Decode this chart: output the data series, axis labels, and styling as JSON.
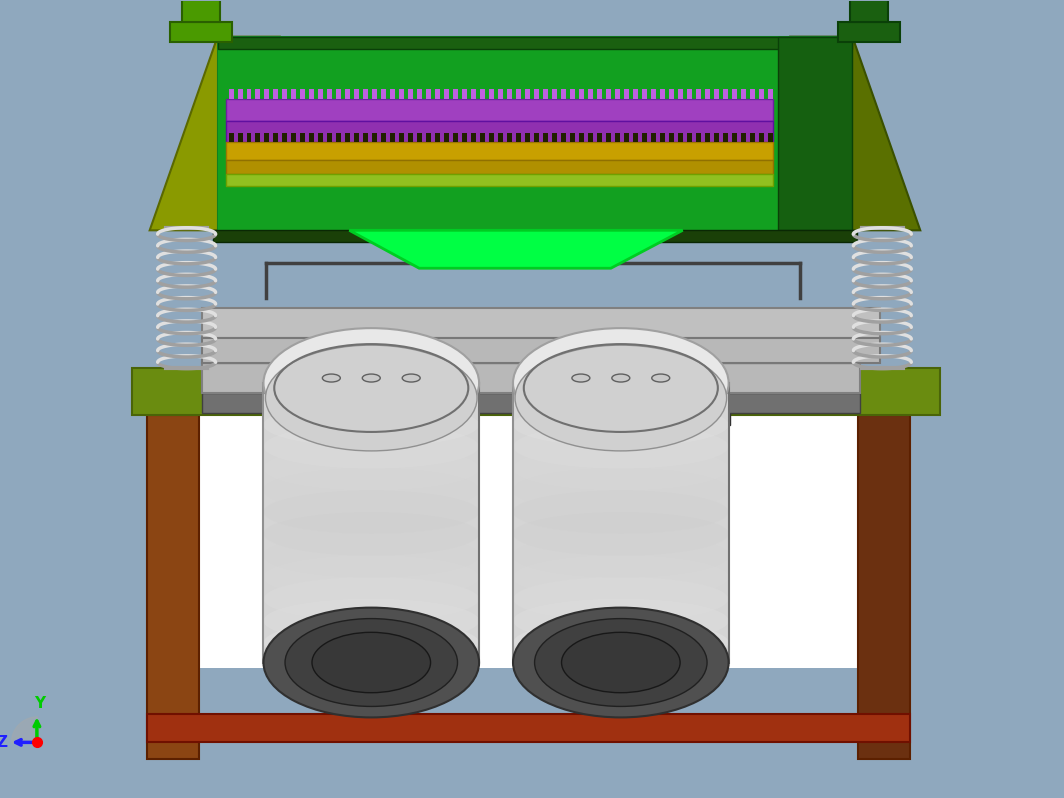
{
  "bg_color": "#8FA8BE",
  "colors": {
    "bright_green": "#3CB800",
    "medium_green": "#2E9000",
    "dark_green": "#1A5C00",
    "olive_green": "#7A8800",
    "dark_olive": "#5A6200",
    "lime_green": "#00FF55",
    "dark_green2": "#2A6000",
    "purple_bg": "#9040B0",
    "purple_line": "#C060E0",
    "yellow_bg": "#C8A000",
    "yellow_line": "#1A1A00",
    "gray_light": "#D0D0D0",
    "gray_medium": "#B0B0B0",
    "gray_dark": "#808080",
    "white_area": "#FFFFFF",
    "brown": "#8B4513",
    "brown_dark": "#5C2E00",
    "brown_red": "#A03010",
    "spring_light": "#E0E0E0",
    "spring_dark": "#909090",
    "motor_silver": "#D8D8D8",
    "motor_gray": "#A0A0A0",
    "motor_dark": "#606060",
    "motor_black": "#303030",
    "frame_green": "#6B8C00",
    "frame_green_dark": "#4A6400"
  }
}
